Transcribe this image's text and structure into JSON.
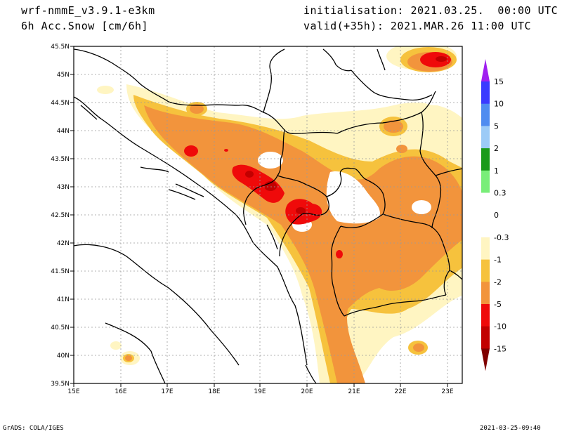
{
  "header": {
    "model": "wrf-nmmE_v3.9.1-e3km",
    "field": "6h Acc.Snow [cm/6h]",
    "init": "initialisation: 2021.03.25.  00:00 UTC",
    "valid": "valid(+35h): 2021.MAR.26 11:00 UTC"
  },
  "footer": {
    "credit": "GrADS: COLA/IGES",
    "timestamp": "2021-03-25-09:40"
  },
  "map": {
    "lon_labels": [
      "15E",
      "16E",
      "17E",
      "18E",
      "19E",
      "20E",
      "21E",
      "22E",
      "23E"
    ],
    "lat_labels": [
      "45.5N",
      "45N",
      "44.5N",
      "44N",
      "43.5N",
      "43N",
      "42.5N",
      "42N",
      "41.5N",
      "41N",
      "40.5N",
      "40N",
      "39.5N"
    ]
  },
  "colorbar": {
    "labels": [
      "15",
      "10",
      "5",
      "2",
      "1",
      "0.3",
      "0",
      "-0.3",
      "-1",
      "-2",
      "-5",
      "-10",
      "-15"
    ],
    "colors": [
      "#3a3aff",
      "#4f8cf0",
      "#9ccbf7",
      "#1a9a1a",
      "#79ee79",
      "#ffffff",
      "#ffffff",
      "#fff5c2",
      "#f6c23d",
      "#f2943c",
      "#ef0a0a",
      "#c20000",
      "#900000"
    ],
    "top_arrow_color": "#a020f0",
    "bottom_arrow_color": "#800000"
  }
}
